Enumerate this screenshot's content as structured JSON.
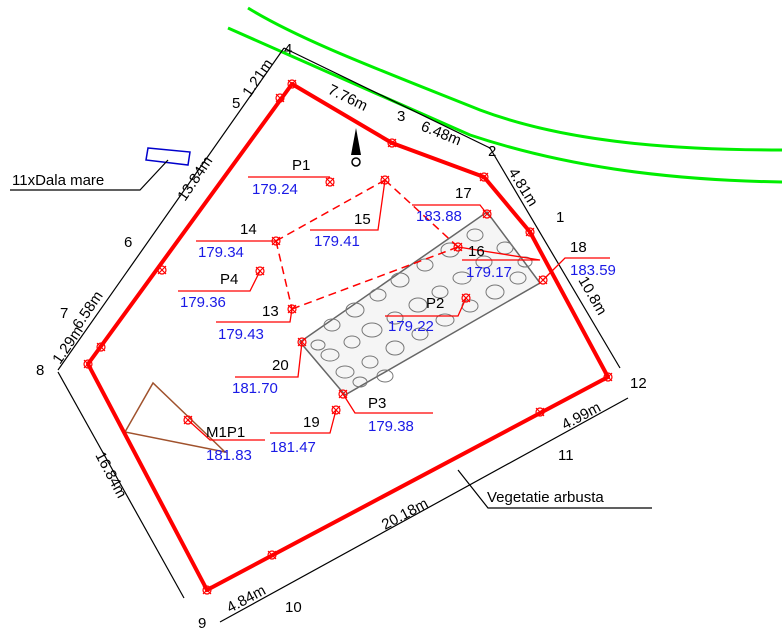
{
  "survey": {
    "boundary_color": "#ff0000",
    "elevation_color": "#1a1ae6",
    "vegetation_color": "#00ee00",
    "station_numbers": [
      "1",
      "2",
      "3",
      "4",
      "5",
      "6",
      "7",
      "8",
      "9",
      "10",
      "11",
      "12"
    ],
    "dimensions": [
      "1.21m",
      "7.76m",
      "6.48m",
      "4.81m",
      "10.8m",
      "4.99m",
      "20.18m",
      "4.84m",
      "16.84m",
      "1.29m",
      "6.58m",
      "13.84m"
    ],
    "points": [
      {
        "name": "P1",
        "elev": "179.24"
      },
      {
        "name": "15",
        "elev": "179.41"
      },
      {
        "name": "17",
        "elev": "183.88"
      },
      {
        "name": "14",
        "elev": "179.34"
      },
      {
        "name": "P4",
        "elev": "179.36"
      },
      {
        "name": "13",
        "elev": "179.43"
      },
      {
        "name": "16",
        "elev": "179.17"
      },
      {
        "name": "18",
        "elev": "183.59"
      },
      {
        "name": "P2",
        "elev": "179.22"
      },
      {
        "name": "20",
        "elev": "181.70"
      },
      {
        "name": "P3",
        "elev": "179.38"
      },
      {
        "name": "19",
        "elev": "181.47"
      },
      {
        "name": "M1P1",
        "elev": "181.83"
      }
    ],
    "labels": {
      "slabs": "11xDala mare",
      "vegetation": "Vegetatie arbusta"
    }
  }
}
